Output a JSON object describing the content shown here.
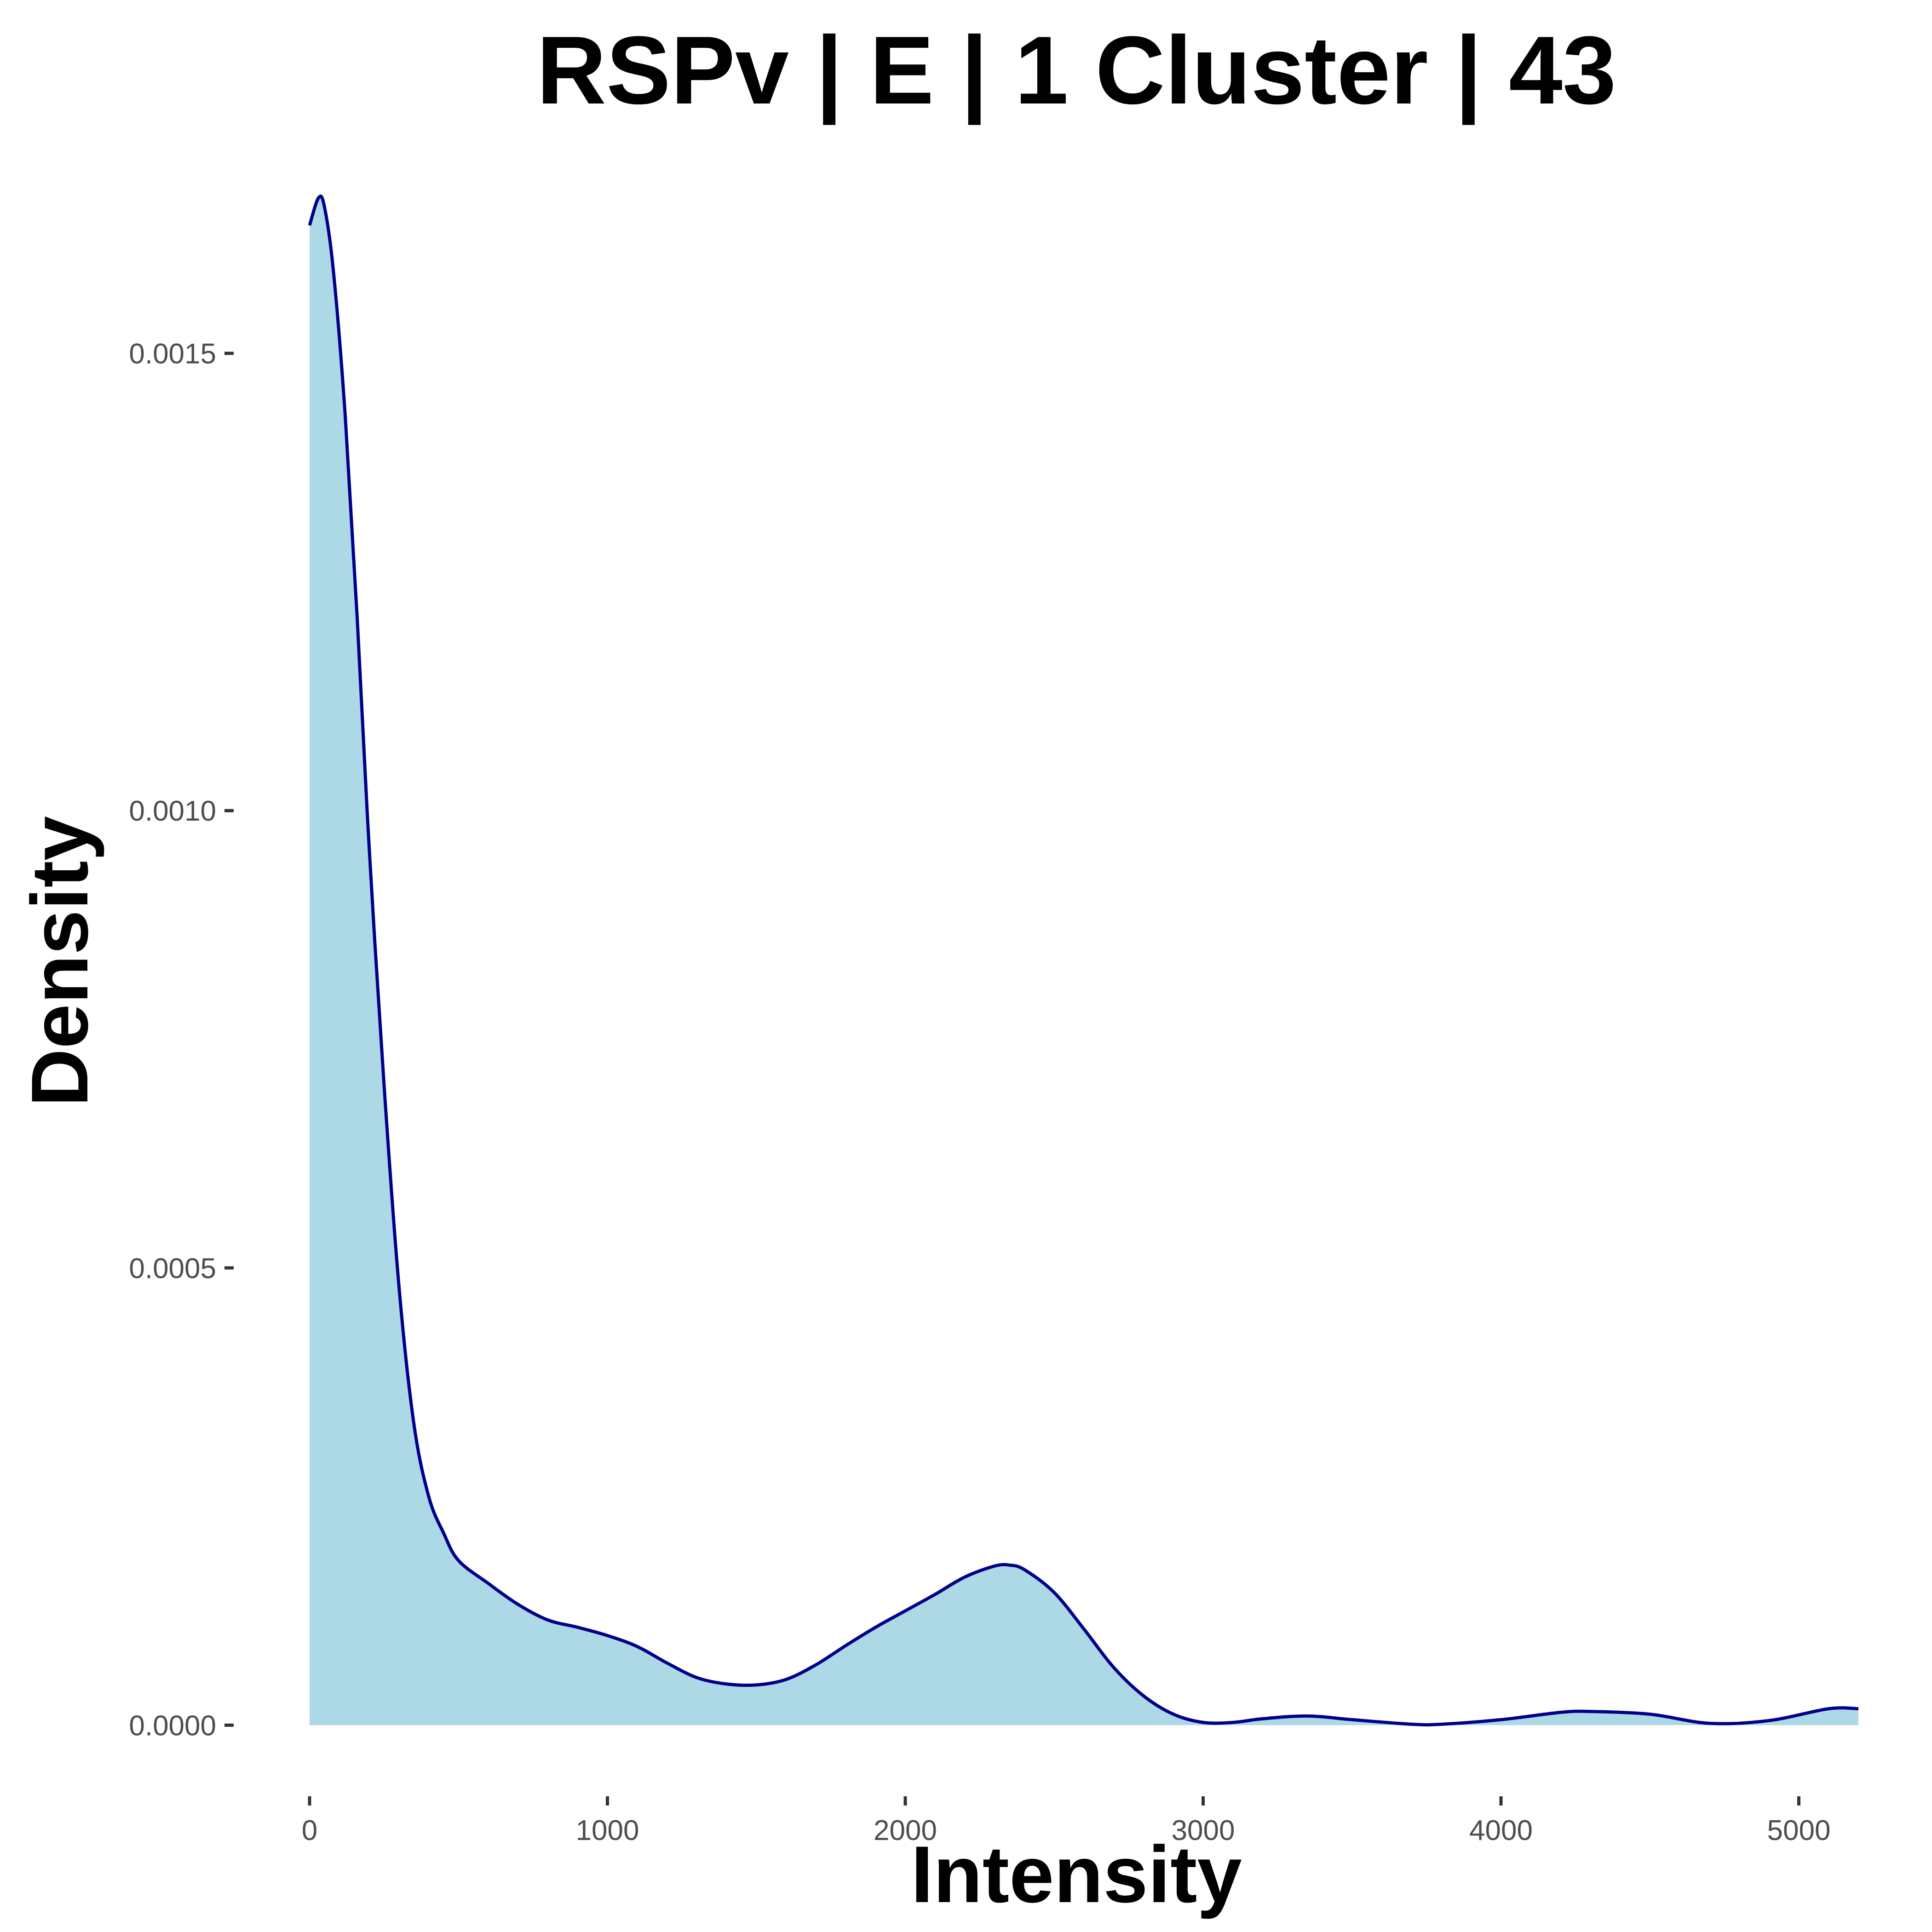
{
  "chart_data": {
    "type": "area",
    "title": "RSPv | E | 1 Cluster |  43",
    "xlabel": "Intensity",
    "ylabel": "Density",
    "xlim": [
      0,
      5200
    ],
    "ylim": [
      -3e-05,
      0.00166
    ],
    "x_ticks": [
      0,
      1000,
      2000,
      3000,
      4000,
      5000
    ],
    "x_tick_labels": [
      "0",
      "1000",
      "2000",
      "3000",
      "4000",
      "5000"
    ],
    "y_ticks": [
      0,
      0.0005,
      0.001,
      0.0015
    ],
    "y_tick_labels": [
      "0.0000",
      "0.0005",
      "0.0010",
      "0.0015"
    ],
    "grid": false,
    "legend": "none",
    "fill_color": "#add8e6",
    "line_color": "#00008b",
    "series": [
      {
        "x": [
          0,
          30,
          50,
          80,
          120,
          160,
          200,
          250,
          300,
          350,
          400,
          450,
          500,
          600,
          700,
          800,
          900,
          1000,
          1100,
          1200,
          1300,
          1400,
          1500,
          1600,
          1700,
          1800,
          1900,
          2000,
          2100,
          2200,
          2300,
          2350,
          2400,
          2500,
          2600,
          2700,
          2800,
          2900,
          3000,
          3100,
          3200,
          3350,
          3500,
          3700,
          3800,
          4000,
          4200,
          4300,
          4500,
          4700,
          4900,
          5100,
          5200
        ],
        "y": [
          0.00164,
          0.00167,
          0.00166,
          0.00159,
          0.00143,
          0.00121,
          0.00096,
          0.0007,
          0.00048,
          0.00033,
          0.00025,
          0.00021,
          0.00018,
          0.000155,
          0.000132,
          0.000115,
          0.000107,
          9.8e-05,
          8.6e-05,
          6.8e-05,
          5.2e-05,
          4.5e-05,
          4.4e-05,
          5e-05,
          6.6e-05,
          8.7e-05,
          0.000107,
          0.000125,
          0.000143,
          0.000162,
          0.000174,
          0.000175,
          0.00017,
          0.000145,
          0.000105,
          6.3e-05,
          3.2e-05,
          1.2e-05,
          3e-06,
          3e-06,
          7e-06,
          1e-05,
          6e-06,
          1e-06,
          1e-06,
          6e-06,
          1.4e-05,
          1.5e-05,
          1.2e-05,
          2e-06,
          5e-06,
          1.8e-05,
          1.8e-05
        ]
      }
    ]
  }
}
